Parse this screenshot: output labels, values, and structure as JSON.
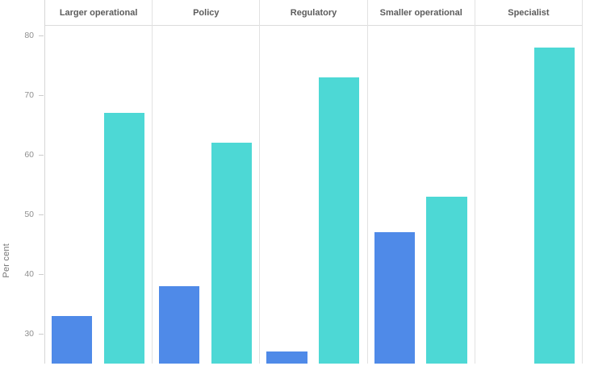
{
  "chart_data": {
    "type": "bar",
    "title": "",
    "xlabel": "",
    "ylabel": "Per cent",
    "categories": [
      "Larger operational",
      "Policy",
      "Regulatory",
      "Smaller operational",
      "Specialist"
    ],
    "series": [
      {
        "name": "blue",
        "color": "#4f8ae8",
        "values": [
          33,
          38,
          27,
          47,
          null
        ]
      },
      {
        "name": "teal",
        "color": "#4dd8d5",
        "values": [
          67,
          62,
          73,
          53,
          78
        ]
      }
    ],
    "y_ticks": [
      80,
      70,
      60,
      50,
      40,
      30
    ],
    "ylim_visible": [
      24.8,
      81.8
    ],
    "grid": false,
    "legend": "none",
    "layout": "faceted-columns"
  }
}
